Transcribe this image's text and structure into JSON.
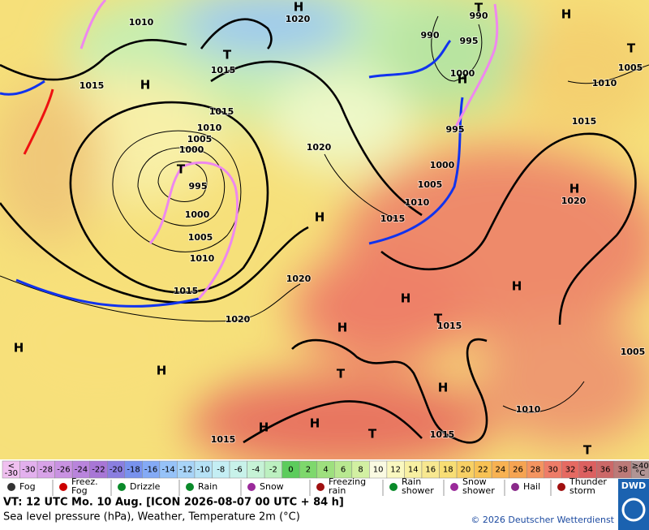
{
  "map": {
    "isobar_labels": [
      1010,
      1020,
      1015,
      1015,
      1015,
      1010,
      1005,
      1000,
      995,
      1000,
      1005,
      1010,
      1015,
      1020,
      1020,
      1020,
      1015,
      1010,
      1005,
      1000,
      995,
      990,
      995,
      990,
      1000,
      1010,
      1005,
      1015,
      1020,
      1015,
      1010,
      1005,
      1015,
      1015
    ],
    "center_labels": [
      "H",
      "H",
      "H",
      "H",
      "H",
      "H",
      "H",
      "H",
      "H",
      "H",
      "H",
      "H",
      "H",
      "H",
      "T",
      "T",
      "T",
      "T",
      "T",
      "T",
      "T",
      "T"
    ]
  },
  "temperature_scale": {
    "low_end": [
      "<",
      -30
    ],
    "values": [
      -30,
      -28,
      -26,
      -24,
      -22,
      -20,
      -18,
      -16,
      -14,
      -12,
      -10,
      -8,
      -6,
      -4,
      -2,
      0,
      2,
      4,
      6,
      8,
      10,
      12,
      14,
      16,
      18,
      20,
      22,
      24,
      26,
      28,
      30,
      32,
      34,
      36,
      38
    ],
    "colors": [
      "#e3b0ee",
      "#d8a2e8",
      "#c992e2",
      "#b984dc",
      "#a876d6",
      "#8a7ee0",
      "#7892ee",
      "#84aaf6",
      "#96c2f8",
      "#a8d4f8",
      "#b6e2f6",
      "#c4eef4",
      "#c8f2ea",
      "#c6f2d6",
      "#bcf0c0",
      "#5ccc5c",
      "#7ed86c",
      "#9ee07e",
      "#b8e890",
      "#d2f0a2",
      "#fafae2",
      "#faf8c0",
      "#f8f0a2",
      "#f8e890",
      "#f8de74",
      "#f8d064",
      "#f8c254",
      "#f8b252",
      "#f6a452",
      "#f49460",
      "#ee7c68",
      "#e66a62",
      "#dc6060",
      "#cc6868",
      "#bc7a78"
    ],
    "low_color": "#f0c0f0",
    "high_end": [
      "≥40",
      "°C"
    ],
    "high_color": "#b09494"
  },
  "legend": [
    [
      "Fog"
    ],
    [
      "Freez.",
      "Fog"
    ],
    [
      "Drizzle"
    ],
    [
      "Rain"
    ],
    [
      "Snow"
    ],
    [
      "Freezing",
      "rain"
    ],
    [
      "Rain",
      "shower"
    ],
    [
      "Snow",
      "shower"
    ],
    [
      "Hail"
    ],
    [
      "Thunder",
      "storm"
    ]
  ],
  "footer": {
    "valid_time": "VT: 12 UTC Mo.  10 Aug. [ICON 2026-08-07  00 UTC + 84 h]",
    "subtitle": "Sea level pressure (hPa), Weather, Temperature 2m (°C)",
    "copyright": "© 2026 Deutscher Wetterdienst",
    "logo": "DWD"
  }
}
